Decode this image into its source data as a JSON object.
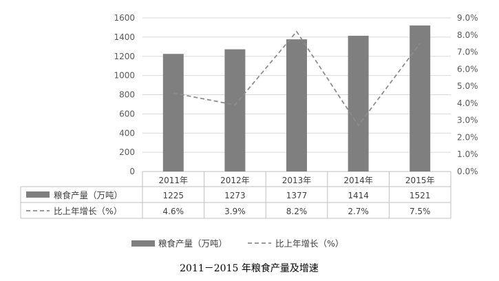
{
  "colors": {
    "bar": "#7f7f7f",
    "line": "#8c8c8c",
    "grid": "#d9d9d9",
    "axis": "#bfbfbf",
    "text": "#595959"
  },
  "chart_data": {
    "type": "bar",
    "categories": [
      "2011年",
      "2012年",
      "2013年",
      "2014年",
      "2015年"
    ],
    "series": [
      {
        "name": "粮食产量（万吨）",
        "type": "bar",
        "axis": "left",
        "values": [
          1225,
          1273,
          1377,
          1414,
          1521
        ],
        "labels": [
          "1225",
          "1273",
          "1377",
          "1414",
          "1521"
        ]
      },
      {
        "name": "比上年增长（%）",
        "type": "line",
        "style": "dashed",
        "axis": "right",
        "values": [
          4.6,
          3.9,
          8.2,
          2.7,
          7.5
        ],
        "labels": [
          "4.6%",
          "3.9%",
          "8.2%",
          "2.7%",
          "7.5%"
        ]
      }
    ],
    "left_axis": {
      "ylim": [
        0,
        1600
      ],
      "ticks": [
        "0",
        "200",
        "400",
        "600",
        "800",
        "1000",
        "1200",
        "1400",
        "1600"
      ]
    },
    "right_axis": {
      "ylim": [
        0,
        9
      ],
      "ticks": [
        "0.0%",
        "1.0%",
        "2.0%",
        "3.0%",
        "4.0%",
        "5.0%",
        "6.0%",
        "7.0%",
        "8.0%",
        "9.0%"
      ]
    },
    "grid": true,
    "data_table": true,
    "legend": {
      "position": "bottom",
      "entries": [
        "粮食产量（万吨）",
        "比上年增长（%）"
      ]
    },
    "caption": "2011－2015 年粮食产量及增速"
  }
}
